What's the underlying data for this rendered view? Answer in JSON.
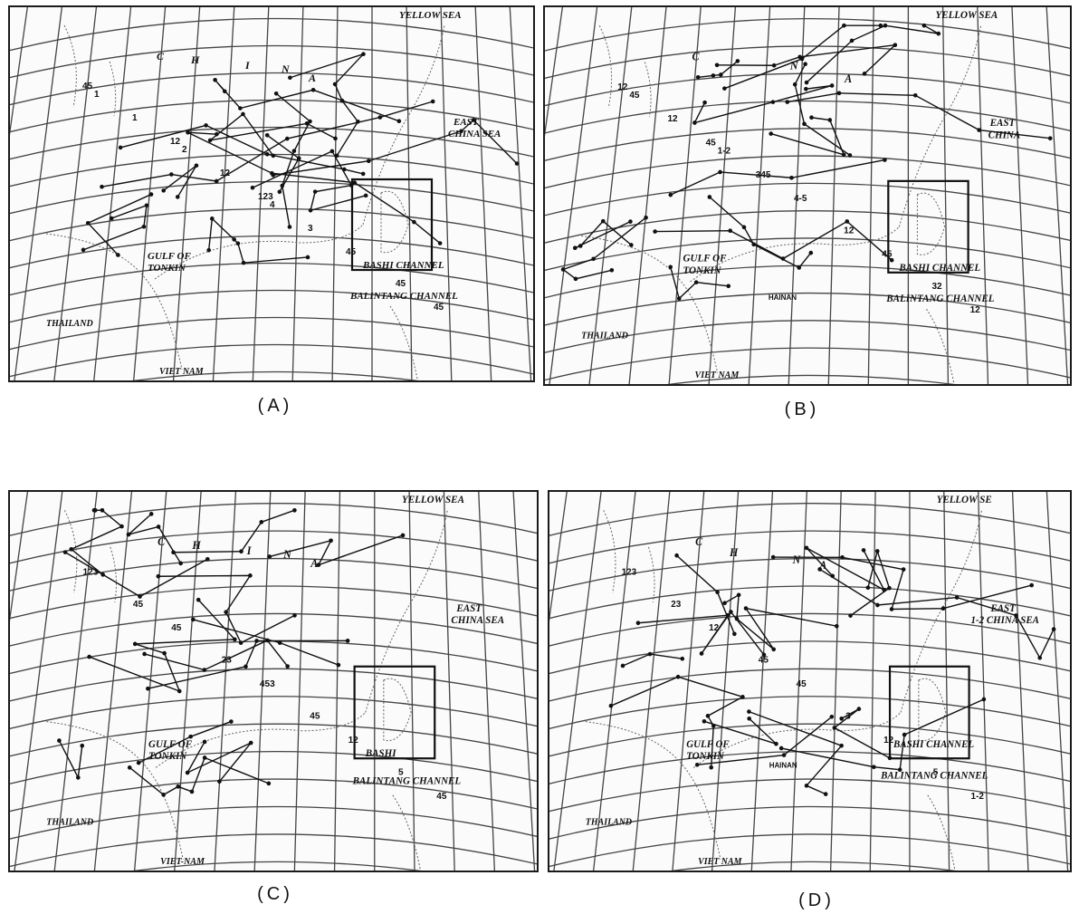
{
  "figure": {
    "panels": [
      {
        "id": "A",
        "caption": "(A)",
        "labels": {
          "yellow_sea": "YELLOW SEA",
          "china": [
            "C",
            "H",
            "I",
            "N",
            "A"
          ],
          "east_china_sea": [
            "EAST",
            "CHINA SEA"
          ],
          "gulf_of_tonkin": [
            "GULF OF",
            "TONKIN"
          ],
          "bashi_channel": "BASHI   CHANNEL",
          "balintang_channel": "BALINTANG CHANNEL",
          "thailand": "THAILAND",
          "viet_nam": "VIET NAM",
          "hainan": ""
        },
        "track_numbers": [
          "45",
          "12",
          "123",
          "45",
          "45",
          "1",
          "12",
          "3",
          "45",
          "1",
          "2",
          "4"
        ]
      },
      {
        "id": "B",
        "caption": "(B)",
        "labels": {
          "yellow_sea": "YELLOW SEA",
          "china": [
            "C",
            "N",
            "A"
          ],
          "east_china_sea": [
            "EAST",
            "CHINA"
          ],
          "gulf_of_tonkin": [
            "GULF OF",
            "TONKIN"
          ],
          "bashi_channel": "BASHI   CHANNEL",
          "balintang_channel": "BALINTANG CHANNEL",
          "thailand": "THAILAND",
          "viet_nam": "VIET NAM",
          "hainan": "HAINAN"
        },
        "track_numbers": [
          "12",
          "45",
          "4-5",
          "45",
          "12",
          "12",
          "345",
          "12",
          "32",
          "45",
          "1-2"
        ]
      },
      {
        "id": "C",
        "caption": "(C)",
        "labels": {
          "yellow_sea": "YELLOW SEA",
          "china": [
            "C",
            "H",
            "I",
            "N",
            "A"
          ],
          "east_china_sea": [
            "EAST",
            "CHINA SEA"
          ],
          "gulf_of_tonkin": [
            "GULF OF",
            "TONKIN"
          ],
          "bashi_channel": "BASHI",
          "balintang_channel": "BALINTANG CHANNEL",
          "thailand": "THAILAND",
          "viet_nam": "VIET-NAM",
          "hainan": ""
        },
        "track_numbers": [
          "123",
          "45",
          "453",
          "12",
          "45",
          "45",
          "23",
          "45",
          "5"
        ]
      },
      {
        "id": "D",
        "caption": "(D)",
        "labels": {
          "yellow_sea": "YELLOW SE",
          "china": [
            "C",
            "H",
            "N",
            "A"
          ],
          "east_china_sea": [
            "EAST",
            "1-2 CHINA SEA"
          ],
          "gulf_of_tonkin": [
            "GULF OF",
            "TONKIN"
          ],
          "bashi_channel": "BASHI    CHANNEL",
          "balintang_channel": "BALINTANG CHANNEL",
          "thailand": "THAILAND",
          "viet_nam": "VIET NAM",
          "hainan": "HAINAN"
        },
        "track_numbers": [
          "123",
          "12",
          "45",
          "12",
          "1-2",
          "23",
          "45",
          "3",
          "5"
        ]
      }
    ]
  }
}
